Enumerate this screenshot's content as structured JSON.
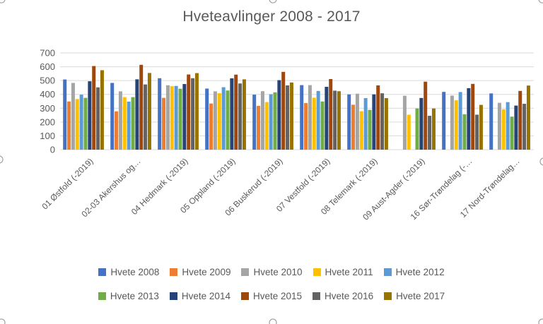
{
  "chart_data": {
    "type": "bar",
    "title": "Hveteavlinger 2008 - 2017",
    "categories": [
      "01 Østfold (-2019)",
      "02-03 Akershus og…",
      "04 Hedmark (-2019)",
      "05 Oppland (-2019)",
      "06 Buskerud (-2019)",
      "07 Vestfold (-2019)",
      "08 Telemark (-2019)",
      "09 Aust-Agder (-2019)",
      "16 Sør-Trøndelag (-…",
      "17 Nord-Trøndelag…"
    ],
    "series": [
      {
        "name": "Hvete 2008",
        "color": "#4472C4",
        "values": [
          508,
          483,
          517,
          442,
          398,
          467,
          400,
          null,
          418,
          407
        ]
      },
      {
        "name": "Hvete 2009",
        "color": "#ED7D31",
        "values": [
          349,
          277,
          375,
          334,
          317,
          337,
          325,
          null,
          null,
          null
        ]
      },
      {
        "name": "Hvete 2010",
        "color": "#A5A5A5",
        "values": [
          483,
          422,
          466,
          422,
          423,
          467,
          405,
          390,
          391,
          339
        ]
      },
      {
        "name": "Hvete 2011",
        "color": "#FFC000",
        "values": [
          366,
          380,
          459,
          408,
          344,
          376,
          278,
          253,
          357,
          292
        ]
      },
      {
        "name": "Hvete 2012",
        "color": "#5B9BD5",
        "values": [
          398,
          348,
          461,
          452,
          401,
          425,
          373,
          null,
          417,
          344
        ]
      },
      {
        "name": "Hvete 2013",
        "color": "#70AD47",
        "values": [
          375,
          380,
          441,
          428,
          415,
          349,
          288,
          298,
          256,
          239
        ]
      },
      {
        "name": "Hvete 2014",
        "color": "#264478",
        "values": [
          495,
          509,
          475,
          516,
          503,
          455,
          400,
          374,
          445,
          319
        ]
      },
      {
        "name": "Hvete 2015",
        "color": "#9E480E",
        "values": [
          605,
          614,
          544,
          543,
          563,
          511,
          465,
          492,
          476,
          425
        ]
      },
      {
        "name": "Hvete 2016",
        "color": "#636363",
        "values": [
          451,
          472,
          517,
          479,
          465,
          427,
          408,
          245,
          253,
          332
        ]
      },
      {
        "name": "Hvete 2017",
        "color": "#997300",
        "values": [
          575,
          555,
          554,
          509,
          486,
          423,
          373,
          298,
          324,
          464
        ]
      }
    ],
    "ylim": [
      0,
      700
    ],
    "yticks": [
      "0",
      "100",
      "200",
      "300",
      "400",
      "500",
      "600",
      "700"
    ],
    "grid": true,
    "legend_position": "bottom",
    "legend_rows": 2,
    "axis_text_color": "#595959",
    "gridline_color": "#D9D9D9"
  },
  "selection": {
    "handle_fill": "#FFFFFF",
    "handle_stroke": "#A6A6A6"
  }
}
